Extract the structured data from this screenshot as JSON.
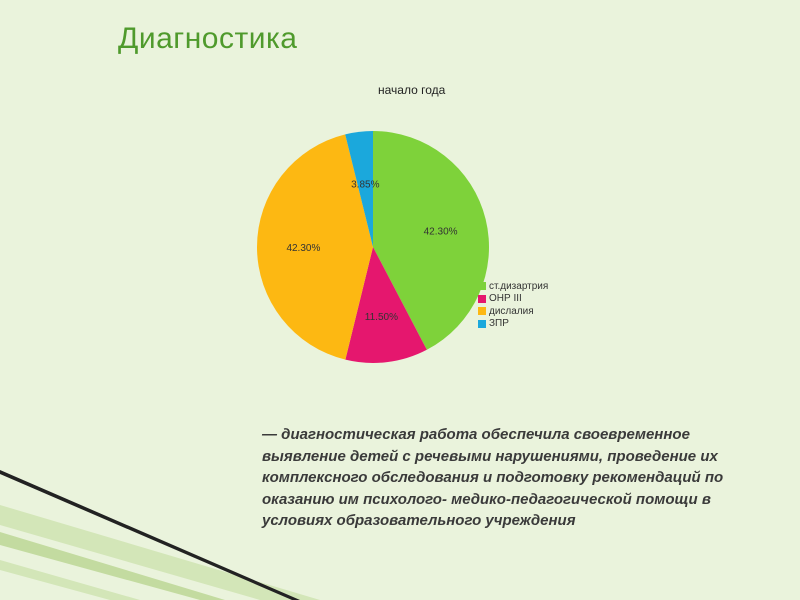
{
  "slide": {
    "title": "Диагностика",
    "caption": "— диагностическая работа обеспечила своевременное выявление детей с речевыми нарушениями, проведение их комплексного обследования и подготовку рекомендаций по оказанию им психолого- медико-педагогической помощи в условиях образовательного учреждения"
  },
  "chart_data": {
    "type": "pie",
    "title": "начало года",
    "legend_position": "right",
    "slices": [
      {
        "label": "ст.дизартрия",
        "value": 42.3,
        "display": "42.30%",
        "color": "#7ed23a"
      },
      {
        "label": "ОНР III",
        "value": 11.5,
        "display": "11.50%",
        "color": "#e5176e"
      },
      {
        "label": "дислалия",
        "value": 42.3,
        "display": "42.30%",
        "color": "#fdb812"
      },
      {
        "label": "ЗПР",
        "value": 3.85,
        "display": "3.85%",
        "color": "#1ba8dc"
      }
    ]
  }
}
